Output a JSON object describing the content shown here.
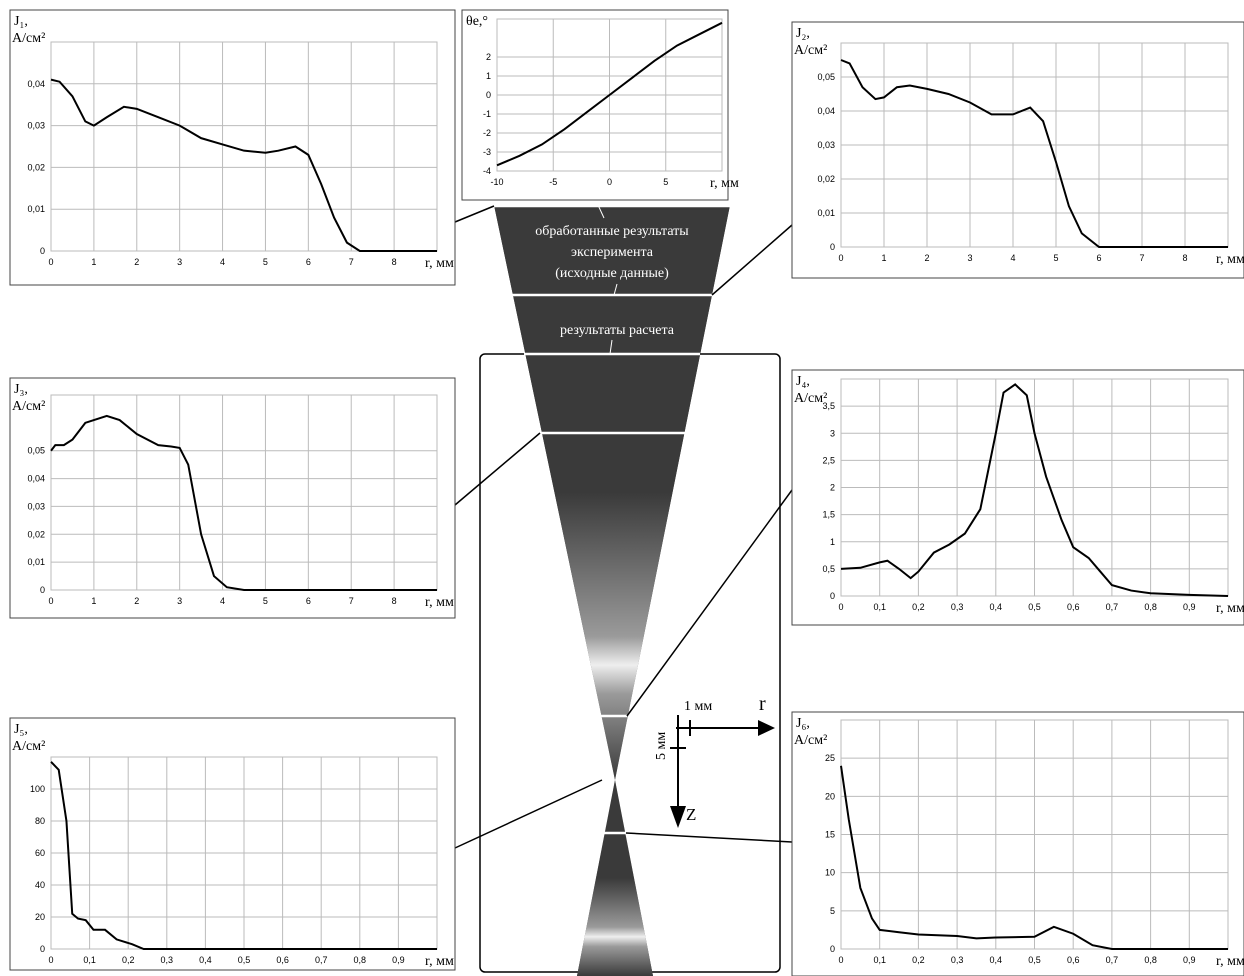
{
  "chart_data": [
    {
      "type": "line",
      "ylabel": "J₁,",
      "yunit": "А/см²",
      "xlabel": "r, мм",
      "color": "#000000",
      "grid": true,
      "x": [
        0,
        0.2,
        0.5,
        0.8,
        1,
        1.3,
        1.7,
        2,
        2.5,
        3,
        3.5,
        4,
        4.5,
        5,
        5.3,
        5.7,
        6,
        6.3,
        6.6,
        6.9,
        7.2,
        8,
        9
      ],
      "values": [
        0.041,
        0.0405,
        0.037,
        0.031,
        0.03,
        0.032,
        0.0345,
        0.034,
        0.032,
        0.03,
        0.027,
        0.0255,
        0.024,
        0.0235,
        0.024,
        0.025,
        0.023,
        0.016,
        0.008,
        0.002,
        0,
        0,
        0
      ],
      "xlim": [
        0,
        9
      ],
      "xticks": [
        0,
        1,
        2,
        3,
        4,
        5,
        6,
        7,
        8
      ],
      "ylim": [
        0,
        0.05
      ],
      "yticks": [
        0,
        {
          "value": 0.01,
          "label": "0,01"
        },
        {
          "value": 0.02,
          "label": "0,02"
        },
        {
          "value": 0.03,
          "label": "0,03"
        },
        {
          "value": 0.04,
          "label": "0,04"
        }
      ]
    },
    {
      "type": "line",
      "ylabel": "θe,°",
      "xlabel": "r, мм",
      "color": "#000000",
      "grid": true,
      "x": [
        -10,
        -8,
        -6,
        -4,
        -2,
        0,
        2,
        4,
        6,
        8,
        10
      ],
      "values": [
        -3.7,
        -3.2,
        -2.6,
        -1.8,
        -0.9,
        0,
        0.9,
        1.8,
        2.6,
        3.2,
        3.8
      ],
      "xlim": [
        -10,
        10
      ],
      "xticks": [
        -10,
        -5,
        0,
        5
      ],
      "ylim": [
        -4,
        4
      ],
      "yticks": [
        -4,
        -3,
        -2,
        -1,
        0,
        1,
        2
      ]
    },
    {
      "type": "line",
      "ylabel": "J₂,",
      "yunit": "А/см²",
      "xlabel": "r, мм",
      "color": "#000000",
      "grid": true,
      "x": [
        0,
        0.2,
        0.5,
        0.8,
        1,
        1.3,
        1.6,
        2,
        2.5,
        3,
        3.5,
        4,
        4.4,
        4.7,
        5,
        5.3,
        5.6,
        6,
        9
      ],
      "values": [
        0.055,
        0.054,
        0.047,
        0.0435,
        0.044,
        0.047,
        0.0475,
        0.0465,
        0.045,
        0.0425,
        0.039,
        0.039,
        0.041,
        0.037,
        0.025,
        0.012,
        0.004,
        0,
        0
      ],
      "xlim": [
        0,
        9
      ],
      "xticks": [
        0,
        1,
        2,
        3,
        4,
        5,
        6,
        7,
        8
      ],
      "ylim": [
        0,
        0.06
      ],
      "yticks": [
        0,
        {
          "value": 0.01,
          "label": "0,01"
        },
        {
          "value": 0.02,
          "label": "0,02"
        },
        {
          "value": 0.03,
          "label": "0,03"
        },
        {
          "value": 0.04,
          "label": "0,04"
        },
        {
          "value": 0.05,
          "label": "0,05"
        }
      ]
    },
    {
      "type": "line",
      "ylabel": "J₃,",
      "yunit": "А/см²",
      "xlabel": "r, мм",
      "color": "#000000",
      "grid": true,
      "x": [
        0,
        0.1,
        0.3,
        0.5,
        0.8,
        1,
        1.3,
        1.6,
        2,
        2.5,
        2.8,
        3,
        3.2,
        3.5,
        3.8,
        4.1,
        4.5,
        9
      ],
      "values": [
        0.05,
        0.052,
        0.052,
        0.054,
        0.06,
        0.061,
        0.0625,
        0.061,
        0.056,
        0.052,
        0.0515,
        0.051,
        0.045,
        0.02,
        0.005,
        0.001,
        0,
        0
      ],
      "xlim": [
        0,
        9
      ],
      "xticks": [
        0,
        1,
        2,
        3,
        4,
        5,
        6,
        7,
        8
      ],
      "ylim": [
        0,
        0.07
      ],
      "yticks": [
        0,
        {
          "value": 0.01,
          "label": "0,01"
        },
        {
          "value": 0.02,
          "label": "0,02"
        },
        {
          "value": 0.03,
          "label": "0,03"
        },
        {
          "value": 0.04,
          "label": "0,04"
        },
        {
          "value": 0.05,
          "label": "0,05"
        }
      ]
    },
    {
      "type": "line",
      "ylabel": "J₄,",
      "yunit": "А/см²",
      "xlabel": "r, мм",
      "color": "#000000",
      "grid": true,
      "x": [
        0,
        0.05,
        0.1,
        0.12,
        0.15,
        0.18,
        0.2,
        0.24,
        0.28,
        0.32,
        0.36,
        0.4,
        0.42,
        0.45,
        0.48,
        0.5,
        0.53,
        0.57,
        0.6,
        0.64,
        0.67,
        0.7,
        0.75,
        0.8,
        0.9,
        1
      ],
      "values": [
        0.5,
        0.52,
        0.62,
        0.65,
        0.5,
        0.33,
        0.45,
        0.8,
        0.95,
        1.15,
        1.6,
        3.0,
        3.75,
        3.9,
        3.7,
        3.0,
        2.2,
        1.4,
        0.9,
        0.7,
        0.45,
        0.2,
        0.1,
        0.05,
        0.02,
        0
      ],
      "xlim": [
        0,
        1
      ],
      "xticks": [
        0,
        {
          "value": 0.1,
          "label": "0,1"
        },
        {
          "value": 0.2,
          "label": "0,2"
        },
        {
          "value": 0.3,
          "label": "0,3"
        },
        {
          "value": 0.4,
          "label": "0,4"
        },
        {
          "value": 0.5,
          "label": "0,5"
        },
        {
          "value": 0.6,
          "label": "0,6"
        },
        {
          "value": 0.7,
          "label": "0,7"
        },
        {
          "value": 0.8,
          "label": "0,8"
        },
        {
          "value": 0.9,
          "label": "0,9"
        }
      ],
      "ylim": [
        0,
        4
      ],
      "yticks": [
        0,
        {
          "value": 0.5,
          "label": "0,5"
        },
        1,
        {
          "value": 1.5,
          "label": "1,5"
        },
        2,
        {
          "value": 2.5,
          "label": "2,5"
        },
        3,
        {
          "value": 3.5,
          "label": "3,5"
        }
      ]
    },
    {
      "type": "line",
      "ylabel": "J₅,",
      "yunit": "А/см²",
      "xlabel": "r, мм",
      "color": "#000000",
      "grid": true,
      "x": [
        0,
        0.02,
        0.04,
        0.055,
        0.07,
        0.09,
        0.11,
        0.14,
        0.17,
        0.21,
        0.24,
        1
      ],
      "values": [
        117,
        112,
        80,
        22,
        19,
        18,
        12,
        12,
        6,
        3,
        0,
        0
      ],
      "xlim": [
        0,
        1
      ],
      "xticks": [
        0,
        {
          "value": 0.1,
          "label": "0,1"
        },
        {
          "value": 0.2,
          "label": "0,2"
        },
        {
          "value": 0.3,
          "label": "0,3"
        },
        {
          "value": 0.4,
          "label": "0,4"
        },
        {
          "value": 0.5,
          "label": "0,5"
        },
        {
          "value": 0.6,
          "label": "0,6"
        },
        {
          "value": 0.7,
          "label": "0,7"
        },
        {
          "value": 0.8,
          "label": "0,8"
        },
        {
          "value": 0.9,
          "label": "0,9"
        }
      ],
      "ylim": [
        0,
        120
      ],
      "yticks": [
        0,
        20,
        40,
        60,
        80,
        100
      ]
    },
    {
      "type": "line",
      "ylabel": "J₆,",
      "yunit": "А/см²",
      "xlabel": "r, мм",
      "color": "#000000",
      "grid": true,
      "x": [
        0,
        0.02,
        0.05,
        0.08,
        0.1,
        0.15,
        0.2,
        0.3,
        0.35,
        0.4,
        0.5,
        0.55,
        0.6,
        0.65,
        0.7,
        1
      ],
      "values": [
        24,
        17,
        8,
        4,
        2.5,
        2.2,
        1.9,
        1.7,
        1.4,
        1.5,
        1.6,
        2.9,
        2,
        0.5,
        0,
        0
      ],
      "xlim": [
        0,
        1
      ],
      "xticks": [
        0,
        {
          "value": 0.1,
          "label": "0,1"
        },
        {
          "value": 0.2,
          "label": "0,2"
        },
        {
          "value": 0.3,
          "label": "0,3"
        },
        {
          "value": 0.4,
          "label": "0,4"
        },
        {
          "value": 0.5,
          "label": "0,5"
        },
        {
          "value": 0.6,
          "label": "0,6"
        },
        {
          "value": 0.7,
          "label": "0,7"
        },
        {
          "value": 0.8,
          "label": "0,8"
        },
        {
          "value": 0.9,
          "label": "0,9"
        }
      ],
      "ylim": [
        0,
        30
      ],
      "yticks": [
        0,
        5,
        10,
        15,
        20,
        25
      ]
    }
  ],
  "diagram": {
    "label_top": [
      "обработанные результаты",
      "эксперимента",
      "(исходные данные)"
    ],
    "label_calc": "результаты расчета",
    "scale_r": "1 мм",
    "scale_z": "5 мм",
    "axis_r": "r",
    "axis_z": "Z"
  }
}
